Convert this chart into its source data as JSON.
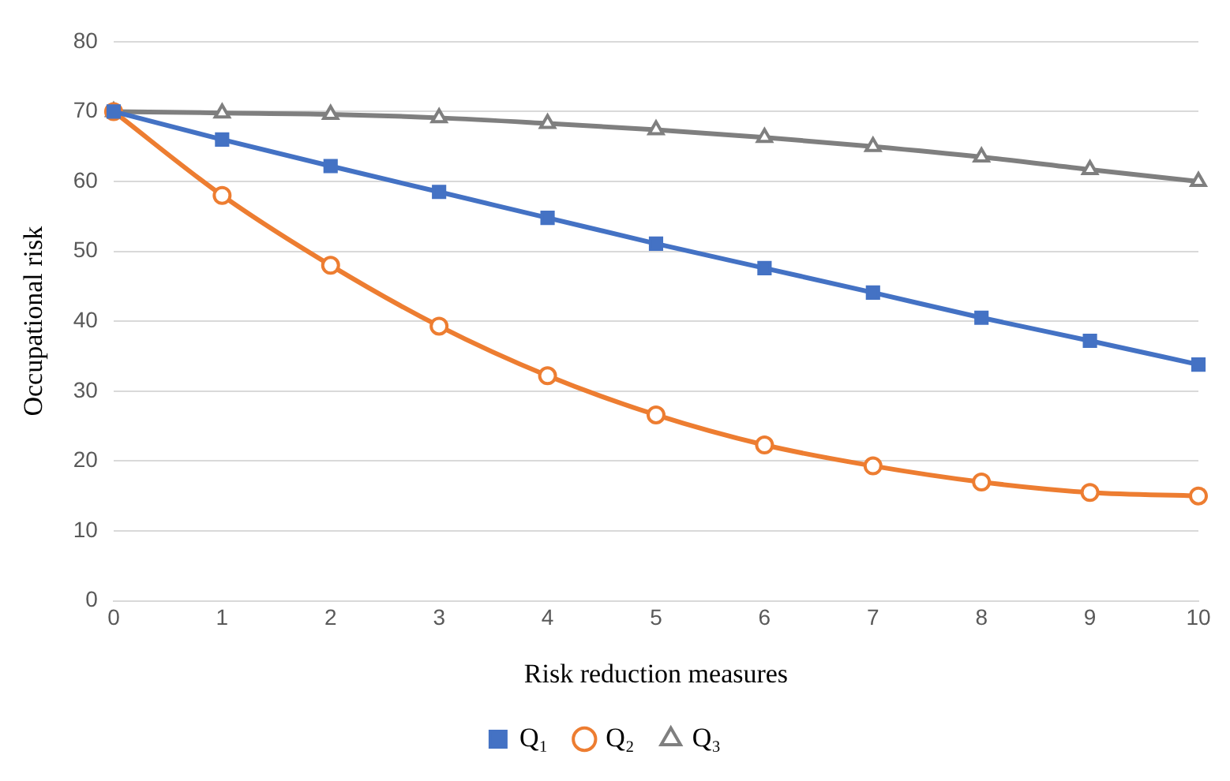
{
  "chart_data": {
    "type": "line",
    "xlabel": "Risk reduction measures",
    "ylabel": "Occupational risk",
    "x": [
      0,
      1,
      2,
      3,
      4,
      5,
      6,
      7,
      8,
      9,
      10
    ],
    "xlim": [
      0,
      10
    ],
    "xticks": [
      0,
      1,
      2,
      3,
      4,
      5,
      6,
      7,
      8,
      9,
      10
    ],
    "ylim": [
      0,
      80
    ],
    "yticks": [
      0,
      10,
      20,
      30,
      40,
      50,
      60,
      70,
      80
    ],
    "grid": "y",
    "legend": "bottom",
    "line_style": "solid",
    "series": [
      {
        "name": "Q₁",
        "color": "#4472c4",
        "marker": "square",
        "values": [
          70,
          66,
          62.2,
          58.5,
          54.8,
          51.1,
          47.6,
          44.1,
          40.5,
          37.2,
          33.8
        ]
      },
      {
        "name": "Q₂",
        "color": "#ed7d31",
        "marker": "circle",
        "values": [
          70,
          58,
          48,
          39.3,
          32.2,
          26.6,
          22.3,
          19.3,
          17,
          15.5,
          15
        ]
      },
      {
        "name": "Q₃",
        "color": "#7f7f7f",
        "marker": "triangle",
        "values": [
          70,
          69.8,
          69.6,
          69.1,
          68.3,
          67.4,
          66.3,
          65,
          63.5,
          61.7,
          60
        ]
      }
    ]
  }
}
